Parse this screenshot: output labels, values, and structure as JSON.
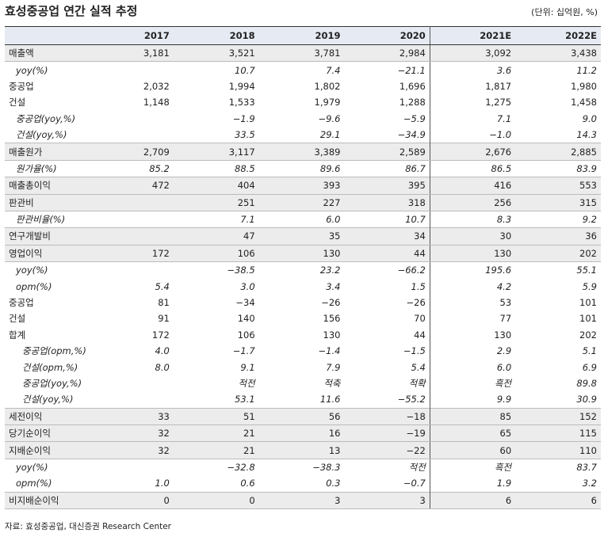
{
  "header": {
    "title": "효성중공업 연간 실적 추정",
    "unit": "(단위: 십억원, %)"
  },
  "table": {
    "columns": [
      "2017",
      "2018",
      "2019",
      "2020",
      "2021E",
      "2022E"
    ],
    "rows": [
      [
        "매출액",
        "3,181",
        "3,521",
        "3,781",
        "2,984",
        "3,092",
        "3,438"
      ],
      [
        "yoy(%)",
        null,
        "10.7",
        "7.4",
        "−21.1",
        "3.6",
        "11.2"
      ],
      [
        "중공업",
        "2,032",
        "1,994",
        "1,802",
        "1,696",
        "1,817",
        "1,980"
      ],
      [
        "건설",
        "1,148",
        "1,533",
        "1,979",
        "1,288",
        "1,275",
        "1,458"
      ],
      [
        "중공업(yoy,%)",
        null,
        "−1.9",
        "−9.6",
        "−5.9",
        "7.1",
        "9.0"
      ],
      [
        "건설(yoy,%)",
        null,
        "33.5",
        "29.1",
        "−34.9",
        "−1.0",
        "14.3"
      ],
      [
        "매출원가",
        "2,709",
        "3,117",
        "3,389",
        "2,589",
        "2,676",
        "2,885"
      ],
      [
        "원가율(%)",
        "85.2",
        "88.5",
        "89.6",
        "86.7",
        "86.5",
        "83.9"
      ],
      [
        "매출총이익",
        "472",
        "404",
        "393",
        "395",
        "416",
        "553"
      ],
      [
        "판관비",
        null,
        "251",
        "227",
        "318",
        "256",
        "315"
      ],
      [
        "판관비율(%)",
        null,
        "7.1",
        "6.0",
        "10.7",
        "8.3",
        "9.2"
      ],
      [
        "연구개발비",
        null,
        "47",
        "35",
        "34",
        "30",
        "36"
      ],
      [
        "영업이익",
        "172",
        "106",
        "130",
        "44",
        "130",
        "202"
      ],
      [
        "yoy(%)",
        null,
        "−38.5",
        "23.2",
        "−66.2",
        "195.6",
        "55.1"
      ],
      [
        "opm(%)",
        "5.4",
        "3.0",
        "3.4",
        "1.5",
        "4.2",
        "5.9"
      ],
      [
        "중공업",
        "81",
        "−34",
        "−26",
        "−26",
        "53",
        "101"
      ],
      [
        "건설",
        "91",
        "140",
        "156",
        "70",
        "77",
        "101"
      ],
      [
        "합계",
        "172",
        "106",
        "130",
        "44",
        "130",
        "202"
      ],
      [
        "중공업(opm,%)",
        "4.0",
        "−1.7",
        "−1.4",
        "−1.5",
        "2.9",
        "5.1"
      ],
      [
        "건설(opm,%)",
        "8.0",
        "9.1",
        "7.9",
        "5.4",
        "6.0",
        "6.9"
      ],
      [
        "중공업(yoy,%)",
        null,
        "적전",
        "적축",
        "적확",
        "흑전",
        "89.8"
      ],
      [
        "건설(yoy,%)",
        null,
        "53.1",
        "11.6",
        "−55.2",
        "9.9",
        "30.9"
      ],
      [
        "세전이익",
        "33",
        "51",
        "56",
        "−18",
        "85",
        "152"
      ],
      [
        "당기순이익",
        "32",
        "21",
        "16",
        "−19",
        "65",
        "115"
      ],
      [
        "지배순이익",
        "32",
        "21",
        "13",
        "−22",
        "60",
        "110"
      ],
      [
        "yoy(%)",
        null,
        "−32.8",
        "−38.3",
        "적전",
        "흑전",
        "83.7"
      ],
      [
        "opm(%)",
        "1.0",
        "0.6",
        "0.3",
        "−0.7",
        "1.9",
        "3.2"
      ],
      [
        "비지배순이익",
        "0",
        "0",
        "3",
        "3",
        "6",
        "6"
      ]
    ]
  },
  "footer": {
    "source": "자료: 효성중공업, 대신증권 Research Center"
  }
}
